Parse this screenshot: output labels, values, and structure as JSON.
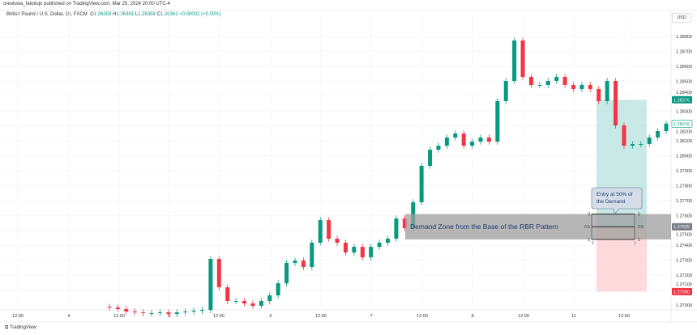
{
  "header": {
    "published": "oreoluwa_fakolujo published on TradingView.com, Mar 25, 2024 20:00 UTC-4",
    "symbol": "British Pound / U.S. Dollar, 1h, FXCM",
    "o_label": "O",
    "o": "1.26359",
    "h_label": "H",
    "h": "1.26361",
    "l_label": "L",
    "l": "1.26358",
    "c_label": "C",
    "c": "1.26361",
    "change": "+0.00002 (+0.00%)"
  },
  "currency": "USD",
  "footer": {
    "brand": "TradingView"
  },
  "colors": {
    "up": "#089981",
    "down": "#f23645",
    "target_zone": "#b2dfdb",
    "stop_zone": "#fccbcd",
    "demand_zone": "#9e9e9e"
  },
  "chart_data": {
    "type": "candlestick",
    "y_ticks": [
      "1.28800",
      "1.28700",
      "1.28600",
      "1.28500",
      "1.28400",
      "1.28300",
      "1.28200",
      "1.28100",
      "1.28000",
      "1.27900",
      "1.27800",
      "1.27700",
      "1.27600",
      "1.27500",
      "1.27400",
      "1.27300",
      "1.27200",
      "1.27100",
      "1.27000"
    ],
    "ylim": [
      1.2697,
      1.2899
    ],
    "x_ticks": [
      "12:00",
      "4",
      "12:00",
      "5",
      "12:00",
      "6",
      "12:00",
      "7",
      "12:00",
      "8",
      "12:00",
      "11",
      "12:00"
    ],
    "closes": [
      1.26984,
      1.26973,
      1.26957,
      1.26951,
      1.26946,
      1.26946,
      1.26951,
      1.2694,
      1.26951,
      1.26957,
      1.26962,
      1.26967,
      1.27309,
      1.27119,
      1.27027,
      1.27027,
      1.27011,
      1.26995,
      1.27027,
      1.27065,
      1.27146,
      1.27282,
      1.27298,
      1.27255,
      1.27418,
      1.27569,
      1.27445,
      1.27418,
      1.27352,
      1.2739,
      1.2732,
      1.2739,
      1.27418,
      1.27445,
      1.2758,
      1.27515,
      1.27689,
      1.27933,
      1.28041,
      1.28068,
      1.28123,
      1.2815,
      1.28068,
      1.28095,
      1.28123,
      1.28095,
      1.28367,
      1.28502,
      1.28773,
      1.28529,
      1.28475,
      1.28475,
      1.28502,
      1.28529,
      1.28475,
      1.28448,
      1.28475,
      1.28448,
      1.28367,
      1.28502,
      1.28204,
      1.28068,
      1.28079,
      1.28079,
      1.28123,
      1.28166,
      1.28216
    ],
    "price_labels": {
      "target": "1.28376",
      "current": "1.28216",
      "entry": "1.27525",
      "stop": "1.27090"
    },
    "demand_zone": {
      "top": 1.2761,
      "bottom": 1.2744,
      "label": "Demand Zone from the Base of the RBR Pattern"
    },
    "fib": {
      "levels": [
        "0",
        "0.5",
        "1"
      ],
      "time_labels": [
        "0",
        "1"
      ]
    },
    "callout": "Entry at 50% of the Demand"
  }
}
